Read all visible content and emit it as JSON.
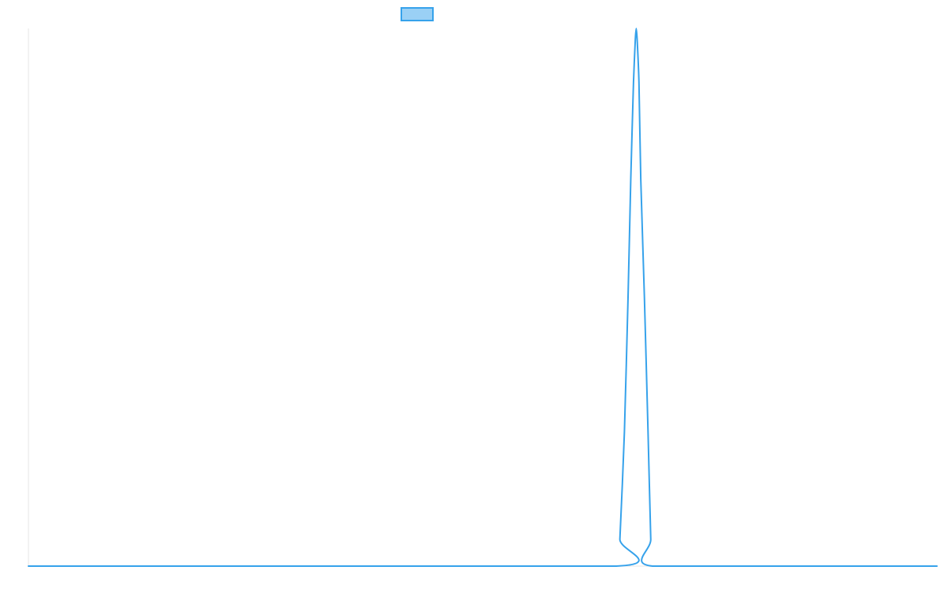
{
  "chart_data": {
    "type": "line",
    "title": "",
    "xlabel": "",
    "ylabel": "",
    "legend": {
      "position": "top-center",
      "entries": [
        {
          "name": "",
          "stroke": "#36a2eb",
          "fill": "#9ad0f5"
        }
      ]
    },
    "grid": false,
    "xlim": [
      0,
      100
    ],
    "ylim": [
      0,
      1
    ],
    "series": [
      {
        "name": "",
        "color": "#36a2eb",
        "points": [
          [
            0,
            0
          ],
          [
            64.7,
            0
          ],
          [
            65.1,
            0.05
          ],
          [
            65.6,
            0.25
          ],
          [
            66.0,
            0.5
          ],
          [
            66.3,
            0.72
          ],
          [
            66.6,
            0.9
          ],
          [
            66.8,
            0.98
          ],
          [
            66.9,
            1.0
          ],
          [
            67.0,
            0.98
          ],
          [
            67.2,
            0.9
          ],
          [
            67.4,
            0.72
          ],
          [
            67.8,
            0.5
          ],
          [
            68.2,
            0.25
          ],
          [
            68.5,
            0.05
          ],
          [
            68.7,
            0
          ],
          [
            100,
            0
          ]
        ]
      }
    ]
  }
}
